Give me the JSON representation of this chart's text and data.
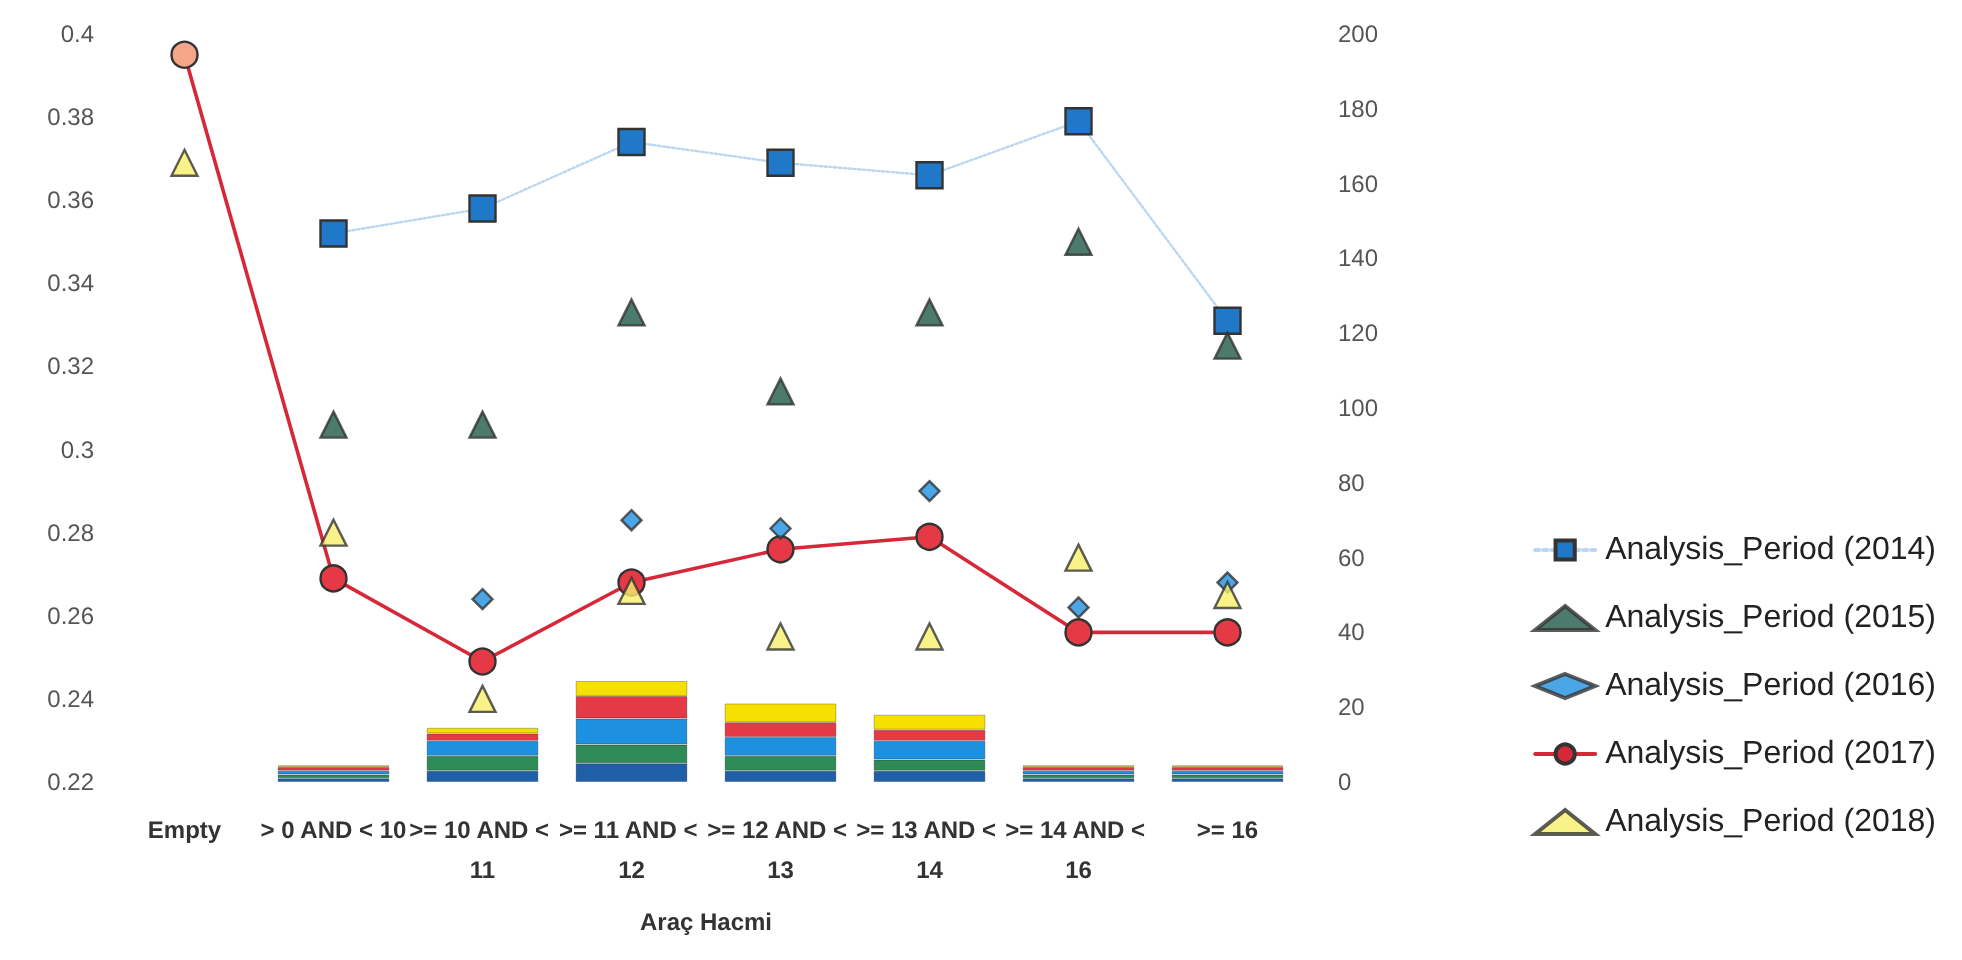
{
  "chart_data": {
    "type": "bar",
    "xlabel": "Araç Hacmi",
    "categories": [
      "Empty",
      "> 0 AND < 10",
      ">= 10 AND < 11",
      ">= 11 AND < 12",
      ">= 12 AND < 13",
      ">= 13 AND < 14",
      ">= 14 AND < 16",
      ">= 16"
    ],
    "stacked": true,
    "legend": "right",
    "grid": false,
    "ylim": [
      0.22,
      0.4
    ],
    "yticks": [
      0.22,
      0.24,
      0.26,
      0.28,
      0.3,
      0.32,
      0.34,
      0.36,
      0.38,
      0.4
    ],
    "y2lim": [
      0,
      200
    ],
    "y2ticks": [
      0,
      20,
      40,
      60,
      80,
      100,
      120,
      140,
      160,
      180,
      200
    ],
    "series": [
      {
        "axis": "y2",
        "color": "#1f5fa8",
        "values": [
          null,
          1,
          3,
          5,
          3,
          3,
          1,
          1
        ]
      },
      {
        "axis": "y2",
        "color": "#2e8b57",
        "values": [
          null,
          1,
          4,
          5,
          4,
          3,
          1,
          1
        ]
      },
      {
        "axis": "y2",
        "color": "#1e90e0",
        "values": [
          null,
          1,
          4,
          7,
          5,
          5,
          1,
          1
        ]
      },
      {
        "axis": "y2",
        "color": "#e63946",
        "values": [
          null,
          1,
          2,
          6,
          4,
          3,
          1,
          1
        ]
      },
      {
        "axis": "y2",
        "color": "#f5e000",
        "values": [
          null,
          0.5,
          1.5,
          4,
          5,
          4,
          0.5,
          0.5
        ]
      },
      {
        "type": "line",
        "name": "Analysis_Period (2014)",
        "marker": "square",
        "line_style": "dotted",
        "color": "#1f78c8",
        "values": [
          null,
          0.352,
          0.358,
          0.374,
          0.369,
          0.366,
          0.379,
          0.331
        ]
      },
      {
        "type": "scatter",
        "name": "Analysis_Period (2015)",
        "marker": "triangle",
        "color": "#1f5a4a",
        "values": [
          null,
          0.306,
          0.306,
          0.333,
          0.314,
          0.333,
          0.35,
          0.325
        ]
      },
      {
        "type": "scatter",
        "name": "Analysis_Period (2016)",
        "marker": "diamond",
        "color": "#1e90e0",
        "values": [
          null,
          null,
          0.264,
          0.283,
          0.281,
          0.29,
          0.262,
          0.268
        ]
      },
      {
        "type": "line",
        "name": "Analysis_Period (2017)",
        "marker": "circle",
        "line_style": "solid",
        "color": "#d62839",
        "colors": [
          "#f4a58a",
          "#e63946",
          "#e63946",
          "#e63946",
          "#e63946",
          "#e63946",
          "#e63946",
          "#e63946"
        ],
        "values": [
          0.395,
          0.269,
          0.249,
          0.268,
          0.276,
          0.279,
          0.256,
          0.256
        ]
      },
      {
        "type": "scatter",
        "name": "Analysis_Period (2018)",
        "marker": "triangle",
        "color": "#f7ef6a",
        "values": [
          0.369,
          0.28,
          0.24,
          0.266,
          0.255,
          0.255,
          0.274,
          0.265
        ]
      }
    ]
  }
}
